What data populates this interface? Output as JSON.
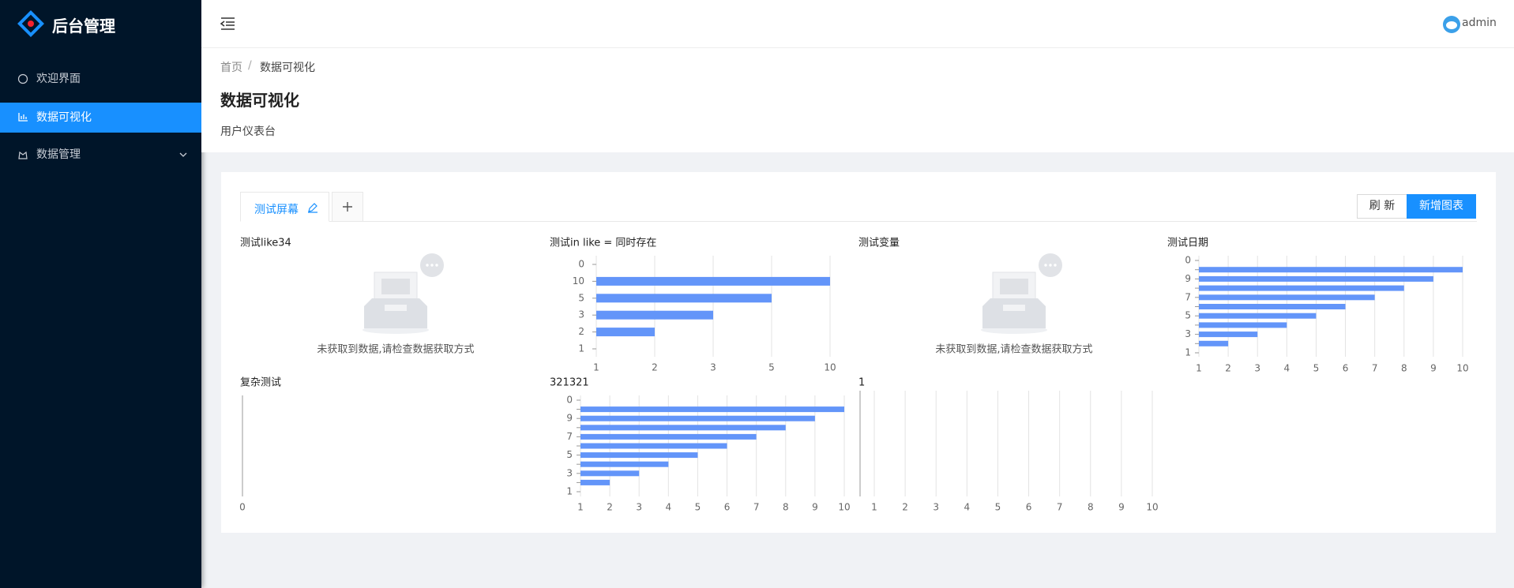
{
  "sidebar": {
    "logo": "后台管理",
    "menu": [
      "欢迎界面",
      "数据可视化",
      "数据管理"
    ],
    "active": 1
  },
  "header": {
    "user": "admin"
  },
  "breadcrumb": [
    "首页",
    "/",
    "数据可视化"
  ],
  "page": {
    "title": "数据可视化",
    "subtitle": "用户仪表台"
  },
  "tabs": [
    "测试屏幕"
  ],
  "buttons": [
    "刷 新",
    "新增图表"
  ],
  "charts": [
    {
      "type": "empty",
      "title": "测试like34",
      "message": "未获取到数据,请检查数据获取方式"
    },
    {
      "type": "bar",
      "title": "测试in like = 同时存在",
      "color": "#6395f9",
      "categories": [
        "0",
        "10",
        "5",
        "3",
        "2",
        "1"
      ],
      "x_categories": [
        "1",
        "2",
        "3",
        "5",
        "10"
      ],
      "values": [
        null,
        10,
        5,
        3,
        2,
        1
      ],
      "grid": true
    },
    {
      "type": "empty",
      "title": "测试变量",
      "message": "未获取到数据,请检查数据获取方式"
    },
    {
      "type": "bar",
      "title": "测试日期",
      "color": "#6395f9",
      "categories": [
        "0",
        null,
        "9",
        null,
        "7",
        null,
        "5",
        null,
        "3",
        null,
        "1"
      ],
      "values": [
        null,
        10,
        9,
        8,
        7,
        6,
        5,
        4,
        3,
        2,
        1
      ],
      "xlim": [
        1,
        10
      ],
      "xticks": [
        1,
        2,
        3,
        4,
        5,
        6,
        7,
        8,
        9,
        10
      ],
      "grid": true
    },
    {
      "type": "bar",
      "title": "复杂测试",
      "color": "#6395f9",
      "categories": [],
      "values": [],
      "xticks": [
        0
      ],
      "grid": false
    },
    {
      "type": "bar",
      "title": "321321",
      "color": "#6395f9",
      "categories": [
        "0",
        null,
        "9",
        null,
        "7",
        null,
        "5",
        null,
        "3",
        null,
        "1"
      ],
      "values": [
        null,
        10,
        9,
        8,
        7,
        6,
        5,
        4,
        3,
        2,
        1
      ],
      "xlim": [
        1,
        10
      ],
      "xticks": [
        1,
        2,
        3,
        4,
        5,
        6,
        7,
        8,
        9,
        10
      ],
      "grid": true
    },
    {
      "type": "bar",
      "title": "1",
      "color": "#6395f9",
      "categories": [],
      "values": [],
      "xlim": [
        1,
        10
      ],
      "xticks": [
        1,
        2,
        3,
        4,
        5,
        6,
        7,
        8,
        9,
        10
      ],
      "grid": true
    }
  ]
}
